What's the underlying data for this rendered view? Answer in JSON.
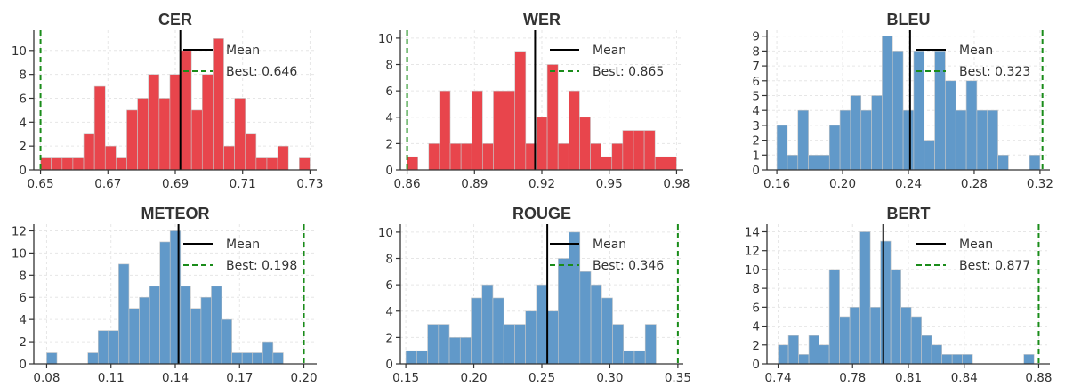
{
  "colors": {
    "red": "#e8454c",
    "blue": "#6199c9",
    "mean": "#000000",
    "best": "#1a8c1a"
  },
  "legend": {
    "mean_label": "Mean"
  },
  "chart_data": [
    {
      "type": "bar",
      "title": "CER",
      "color": "red",
      "xlim": [
        0.648,
        0.732
      ],
      "ylim": [
        0,
        11.7
      ],
      "xticks": [
        "0.65",
        "0.67",
        "0.69",
        "0.71",
        "0.73"
      ],
      "yticks": [
        "0",
        "2",
        "4",
        "6",
        "8",
        "10"
      ],
      "bin_start": 0.65,
      "bin_width": 0.0032,
      "values": [
        1,
        1,
        1,
        1,
        3,
        7,
        2,
        1,
        5,
        6,
        8,
        6,
        8,
        10,
        5,
        8,
        11,
        2,
        6,
        3,
        1,
        1,
        2,
        0,
        1
      ],
      "mean": 0.6915,
      "best": 0.65,
      "best_label": "Best: 0.646"
    },
    {
      "type": "bar",
      "title": "WER",
      "color": "red",
      "xlim": [
        0.857,
        0.983
      ],
      "ylim": [
        0,
        10.6
      ],
      "xticks": [
        "0.86",
        "0.89",
        "0.92",
        "0.95",
        "0.98"
      ],
      "yticks": [
        "0",
        "2",
        "4",
        "6",
        "8",
        "10"
      ],
      "bin_start": 0.86,
      "bin_width": 0.0048,
      "values": [
        1,
        0,
        2,
        6,
        2,
        2,
        6,
        2,
        6,
        6,
        9,
        2,
        4,
        8,
        2,
        6,
        4,
        2,
        1,
        2,
        3,
        3,
        3,
        1,
        1
      ],
      "mean": 0.917,
      "best": 0.86,
      "best_label": "Best: 0.865"
    },
    {
      "type": "bar",
      "title": "BLEU",
      "color": "blue",
      "xlim": [
        0.154,
        0.326
      ],
      "ylim": [
        0,
        9.4
      ],
      "xticks": [
        "0.16",
        "0.20",
        "0.24",
        "0.28",
        "0.32"
      ],
      "yticks": [
        "0",
        "1",
        "2",
        "3",
        "4",
        "5",
        "6",
        "7",
        "8",
        "9"
      ],
      "bin_start": 0.16,
      "bin_width": 0.0064,
      "values": [
        3,
        1,
        4,
        1,
        1,
        3,
        4,
        5,
        4,
        5,
        9,
        8,
        4,
        8,
        2,
        8,
        6,
        4,
        6,
        4,
        4,
        1,
        0,
        0,
        1
      ],
      "mean": 0.241,
      "best": 0.3215,
      "best_label": "Best: 0.323"
    },
    {
      "type": "bar",
      "title": "METEOR",
      "color": "blue",
      "xlim": [
        0.074,
        0.206
      ],
      "ylim": [
        0,
        12.6
      ],
      "xticks": [
        "0.08",
        "0.11",
        "0.14",
        "0.17",
        "0.20"
      ],
      "yticks": [
        "0",
        "2",
        "4",
        "6",
        "8",
        "10",
        "12"
      ],
      "bin_start": 0.08,
      "bin_width": 0.0048,
      "values": [
        1,
        0,
        0,
        0,
        1,
        3,
        3,
        9,
        5,
        6,
        7,
        11,
        12,
        7,
        5,
        6,
        7,
        4,
        1,
        1,
        1,
        2,
        1
      ],
      "mean": 0.1415,
      "best": 0.2,
      "best_label": "Best: 0.198"
    },
    {
      "type": "bar",
      "title": "ROUGE",
      "color": "blue",
      "xlim": [
        0.146,
        0.354
      ],
      "ylim": [
        0,
        10.6
      ],
      "xticks": [
        "0.15",
        "0.20",
        "0.25",
        "0.30",
        "0.35"
      ],
      "yticks": [
        "0",
        "2",
        "4",
        "6",
        "8",
        "10"
      ],
      "bin_start": 0.15,
      "bin_width": 0.008,
      "values": [
        1,
        1,
        3,
        3,
        2,
        2,
        5,
        6,
        5,
        3,
        3,
        4,
        6,
        4,
        8,
        10,
        7,
        6,
        5,
        3,
        1,
        1,
        3
      ],
      "mean": 0.254,
      "best": 0.35,
      "best_label": "Best: 0.346"
    },
    {
      "type": "bar",
      "title": "BERT",
      "color": "blue",
      "xlim": [
        0.734,
        0.886
      ],
      "ylim": [
        0,
        14.8
      ],
      "xticks": [
        "0.74",
        "0.78",
        "0.81",
        "0.84",
        "0.88"
      ],
      "yticks": [
        "0",
        "2",
        "4",
        "6",
        "8",
        "10",
        "12",
        "14"
      ],
      "bin_start": 0.74,
      "bin_width": 0.0055,
      "values": [
        2,
        3,
        1,
        3,
        2,
        10,
        5,
        6,
        14,
        6,
        13,
        10,
        6,
        5,
        3,
        2,
        1,
        1,
        1,
        0,
        0,
        0,
        0,
        0,
        1
      ],
      "mean": 0.7965,
      "best": 0.88,
      "best_label": "Best: 0.877"
    }
  ]
}
